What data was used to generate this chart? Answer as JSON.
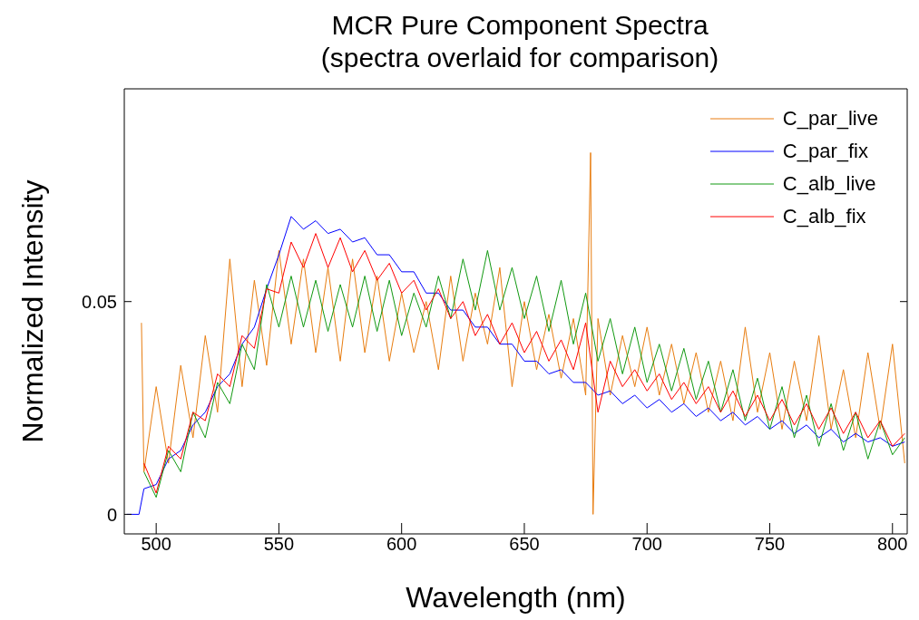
{
  "chart_data": {
    "type": "line",
    "title": "MCR Pure Component Spectra\n(spectra overlaid for comparison)",
    "xlabel": "Wavelength (nm)",
    "ylabel": "Normalized Intensity",
    "x": [
      488,
      493,
      495,
      500,
      505,
      510,
      515,
      520,
      525,
      530,
      535,
      540,
      545,
      550,
      555,
      560,
      565,
      570,
      575,
      580,
      585,
      590,
      595,
      600,
      605,
      610,
      615,
      620,
      625,
      630,
      635,
      640,
      645,
      650,
      655,
      660,
      665,
      670,
      675,
      680,
      685,
      690,
      695,
      700,
      705,
      710,
      715,
      720,
      725,
      730,
      735,
      740,
      745,
      750,
      755,
      760,
      765,
      770,
      775,
      780,
      785,
      790,
      795,
      800,
      805
    ],
    "series": [
      {
        "name": "C_par_live",
        "color": "#e87d10",
        "x": [
          494,
          495,
          500,
          505,
          510,
          515,
          520,
          525,
          530,
          535,
          540,
          545,
          550,
          555,
          560,
          565,
          570,
          575,
          580,
          585,
          590,
          595,
          600,
          605,
          610,
          615,
          620,
          625,
          630,
          635,
          640,
          645,
          650,
          655,
          660,
          665,
          670,
          675,
          677,
          678,
          680,
          685,
          690,
          695,
          700,
          705,
          710,
          715,
          720,
          725,
          730,
          735,
          740,
          745,
          750,
          755,
          760,
          765,
          770,
          775,
          780,
          785,
          790,
          795,
          800,
          805
        ],
        "values": [
          0.045,
          0.01,
          0.03,
          0.012,
          0.035,
          0.018,
          0.042,
          0.024,
          0.06,
          0.03,
          0.055,
          0.035,
          0.062,
          0.04,
          0.06,
          0.038,
          0.058,
          0.036,
          0.06,
          0.038,
          0.056,
          0.036,
          0.052,
          0.038,
          0.05,
          0.034,
          0.056,
          0.036,
          0.052,
          0.04,
          0.058,
          0.03,
          0.05,
          0.034,
          0.047,
          0.032,
          0.046,
          0.028,
          0.085,
          0.0,
          0.046,
          0.028,
          0.042,
          0.03,
          0.044,
          0.028,
          0.04,
          0.026,
          0.038,
          0.024,
          0.036,
          0.022,
          0.044,
          0.024,
          0.038,
          0.02,
          0.036,
          0.022,
          0.042,
          0.02,
          0.034,
          0.018,
          0.038,
          0.02,
          0.04,
          0.012
        ]
      },
      {
        "name": "C_par_fix",
        "color": "#0000ff",
        "values": [
          0,
          0,
          0.006,
          0.007,
          0.013,
          0.015,
          0.021,
          0.024,
          0.03,
          0.033,
          0.04,
          0.044,
          0.053,
          0.061,
          0.07,
          0.067,
          0.069,
          0.066,
          0.067,
          0.064,
          0.065,
          0.061,
          0.061,
          0.057,
          0.057,
          0.052,
          0.052,
          0.048,
          0.048,
          0.044,
          0.044,
          0.04,
          0.04,
          0.036,
          0.036,
          0.033,
          0.034,
          0.031,
          0.031,
          0.028,
          0.029,
          0.026,
          0.028,
          0.025,
          0.027,
          0.024,
          0.026,
          0.023,
          0.025,
          0.022,
          0.024,
          0.021,
          0.023,
          0.02,
          0.022,
          0.019,
          0.021,
          0.018,
          0.02,
          0.017,
          0.019,
          0.017,
          0.018,
          0.016,
          0.017
        ]
      },
      {
        "name": "C_alb_live",
        "color": "#119911",
        "values": [
          null,
          null,
          0.01,
          0.004,
          0.015,
          0.01,
          0.024,
          0.018,
          0.031,
          0.026,
          0.04,
          0.034,
          0.054,
          0.044,
          0.056,
          0.044,
          0.055,
          0.043,
          0.054,
          0.044,
          0.056,
          0.043,
          0.055,
          0.042,
          0.052,
          0.044,
          0.056,
          0.046,
          0.06,
          0.048,
          0.062,
          0.048,
          0.058,
          0.046,
          0.056,
          0.043,
          0.055,
          0.04,
          0.052,
          0.036,
          0.046,
          0.033,
          0.044,
          0.031,
          0.04,
          0.029,
          0.039,
          0.027,
          0.036,
          0.024,
          0.034,
          0.022,
          0.032,
          0.02,
          0.03,
          0.018,
          0.028,
          0.016,
          0.026,
          0.015,
          0.024,
          0.013,
          0.022,
          0.014,
          0.018
        ]
      },
      {
        "name": "C_alb_fix",
        "color": "#ff0000",
        "values": [
          null,
          null,
          0.012,
          0.005,
          0.016,
          0.013,
          0.024,
          0.022,
          0.033,
          0.03,
          0.042,
          0.039,
          0.053,
          0.052,
          0.064,
          0.058,
          0.066,
          0.058,
          0.065,
          0.057,
          0.062,
          0.055,
          0.059,
          0.052,
          0.055,
          0.048,
          0.053,
          0.046,
          0.05,
          0.042,
          0.047,
          0.04,
          0.045,
          0.038,
          0.043,
          0.036,
          0.041,
          0.034,
          0.045,
          0.024,
          0.036,
          0.03,
          0.034,
          0.029,
          0.033,
          0.027,
          0.031,
          0.026,
          0.03,
          0.024,
          0.029,
          0.023,
          0.028,
          0.022,
          0.027,
          0.021,
          0.026,
          0.02,
          0.025,
          0.019,
          0.024,
          0.018,
          0.022,
          0.016,
          0.019
        ]
      }
    ],
    "xlim": [
      487,
      806
    ],
    "xticks": [
      500,
      550,
      600,
      650,
      700,
      750,
      800
    ],
    "ylim": [
      -0.0046,
      0.1
    ],
    "yticks": [
      0,
      0.05
    ],
    "grid": false,
    "legend": "top right",
    "marker": "none",
    "line_style": "solid"
  }
}
